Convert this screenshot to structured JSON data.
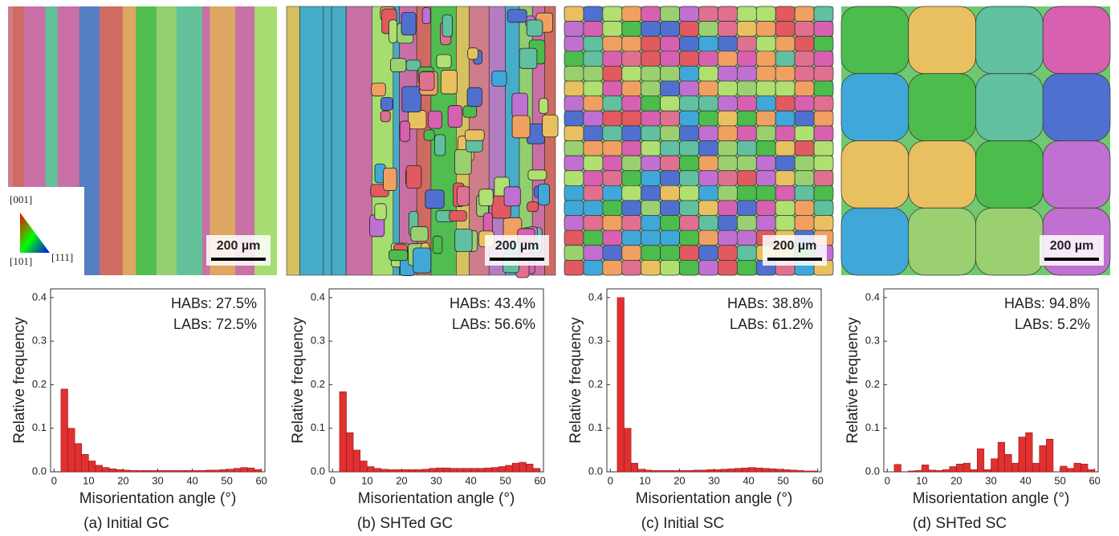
{
  "chart_data": [
    {
      "type": "histogram",
      "caption": "(a) Initial GC",
      "scale_bar": "200 µm",
      "annotations": [
        "HABs: 27.5%",
        "LABs: 72.5%"
      ],
      "xlabel": "Misorientation angle (°)",
      "ylabel": "Relative frequency",
      "color": "#e03030",
      "xlim": [
        -1,
        61
      ],
      "ylim": [
        0,
        0.42
      ],
      "xticks": [
        0,
        10,
        20,
        30,
        40,
        50,
        60
      ],
      "yticks": [
        {
          "value": 0,
          "label": "0.0"
        },
        0.1,
        0.2,
        0.3,
        0.4
      ],
      "bins": [
        2,
        4,
        6,
        8,
        10,
        12,
        14,
        16,
        18,
        20,
        22,
        24,
        26,
        28,
        30,
        32,
        34,
        36,
        38,
        40,
        42,
        44,
        46,
        48,
        50,
        52,
        54,
        56,
        58,
        60
      ],
      "values": [
        0.19,
        0.1,
        0.065,
        0.04,
        0.025,
        0.015,
        0.01,
        0.007,
        0.005,
        0.004,
        0.003,
        0.003,
        0.003,
        0.003,
        0.003,
        0.003,
        0.003,
        0.003,
        0.003,
        0.003,
        0.003,
        0.004,
        0.004,
        0.005,
        0.006,
        0.008,
        0.01,
        0.009,
        0.005
      ]
    },
    {
      "type": "histogram",
      "caption": "(b) SHTed GC",
      "scale_bar": "200 µm",
      "annotations": [
        "HABs: 43.4%",
        "LABs: 56.6%"
      ],
      "xlabel": "Misorientation angle (°)",
      "ylabel": "Relative frequency",
      "color": "#e03030",
      "xlim": [
        -1,
        61
      ],
      "ylim": [
        0,
        0.42
      ],
      "xticks": [
        0,
        10,
        20,
        30,
        40,
        50,
        60
      ],
      "yticks": [
        {
          "value": 0,
          "label": "0.0"
        },
        0.1,
        0.2,
        0.3,
        0.4
      ],
      "bins": [
        2,
        4,
        6,
        8,
        10,
        12,
        14,
        16,
        18,
        20,
        22,
        24,
        26,
        28,
        30,
        32,
        34,
        36,
        38,
        40,
        42,
        44,
        46,
        48,
        50,
        52,
        54,
        56,
        58,
        60
      ],
      "values": [
        0.184,
        0.09,
        0.05,
        0.025,
        0.012,
        0.008,
        0.006,
        0.005,
        0.005,
        0.005,
        0.005,
        0.005,
        0.006,
        0.008,
        0.009,
        0.009,
        0.008,
        0.008,
        0.008,
        0.008,
        0.008,
        0.009,
        0.01,
        0.012,
        0.015,
        0.02,
        0.022,
        0.018,
        0.008
      ]
    },
    {
      "type": "histogram",
      "caption": "(c) Initial SC",
      "scale_bar": "200 µm",
      "annotations": [
        "HABs: 38.8%",
        "LABs: 61.2%"
      ],
      "xlabel": "Misorientation angle (°)",
      "ylabel": "Relative frequency",
      "color": "#e03030",
      "xlim": [
        -1,
        61
      ],
      "ylim": [
        0,
        0.42
      ],
      "xticks": [
        0,
        10,
        20,
        30,
        40,
        50,
        60
      ],
      "yticks": [
        {
          "value": 0,
          "label": "0.0"
        },
        0.1,
        0.2,
        0.3,
        0.4
      ],
      "bins": [
        2,
        4,
        6,
        8,
        10,
        12,
        14,
        16,
        18,
        20,
        22,
        24,
        26,
        28,
        30,
        32,
        34,
        36,
        38,
        40,
        42,
        44,
        46,
        48,
        50,
        52,
        54,
        56,
        58,
        60
      ],
      "values": [
        0.4,
        0.1,
        0.02,
        0.006,
        0.004,
        0.003,
        0.003,
        0.003,
        0.003,
        0.003,
        0.003,
        0.004,
        0.004,
        0.005,
        0.005,
        0.006,
        0.007,
        0.008,
        0.009,
        0.01,
        0.009,
        0.008,
        0.007,
        0.006,
        0.005,
        0.004,
        0.003,
        0.002,
        0.002
      ]
    },
    {
      "type": "histogram",
      "caption": "(d) SHTed SC",
      "scale_bar": "200 µm",
      "annotations": [
        "HABs: 94.8%",
        "LABs: 5.2%"
      ],
      "xlabel": "Misorientation angle (°)",
      "ylabel": "Relative frequency",
      "color": "#e03030",
      "xlim": [
        -1,
        61
      ],
      "ylim": [
        0,
        0.42
      ],
      "xticks": [
        0,
        10,
        20,
        30,
        40,
        50,
        60
      ],
      "yticks": [
        {
          "value": 0,
          "label": "0.0"
        },
        0.1,
        0.2,
        0.3,
        0.4
      ],
      "bins": [
        2,
        4,
        6,
        8,
        10,
        12,
        14,
        16,
        18,
        20,
        22,
        24,
        26,
        28,
        30,
        32,
        34,
        36,
        38,
        40,
        42,
        44,
        46,
        48,
        50,
        52,
        54,
        56,
        58,
        60
      ],
      "values": [
        0.017,
        0,
        0.002,
        0.003,
        0.016,
        0.004,
        0.003,
        0.005,
        0.012,
        0.018,
        0.02,
        0.005,
        0.053,
        0.005,
        0.03,
        0.068,
        0.04,
        0.02,
        0.08,
        0.09,
        0.02,
        0.06,
        0.075,
        0,
        0.013,
        0.008,
        0.02,
        0.018,
        0.005
      ]
    }
  ],
  "ipf_legend": {
    "labels": [
      "[001]",
      "[101]",
      "[111]"
    ]
  }
}
